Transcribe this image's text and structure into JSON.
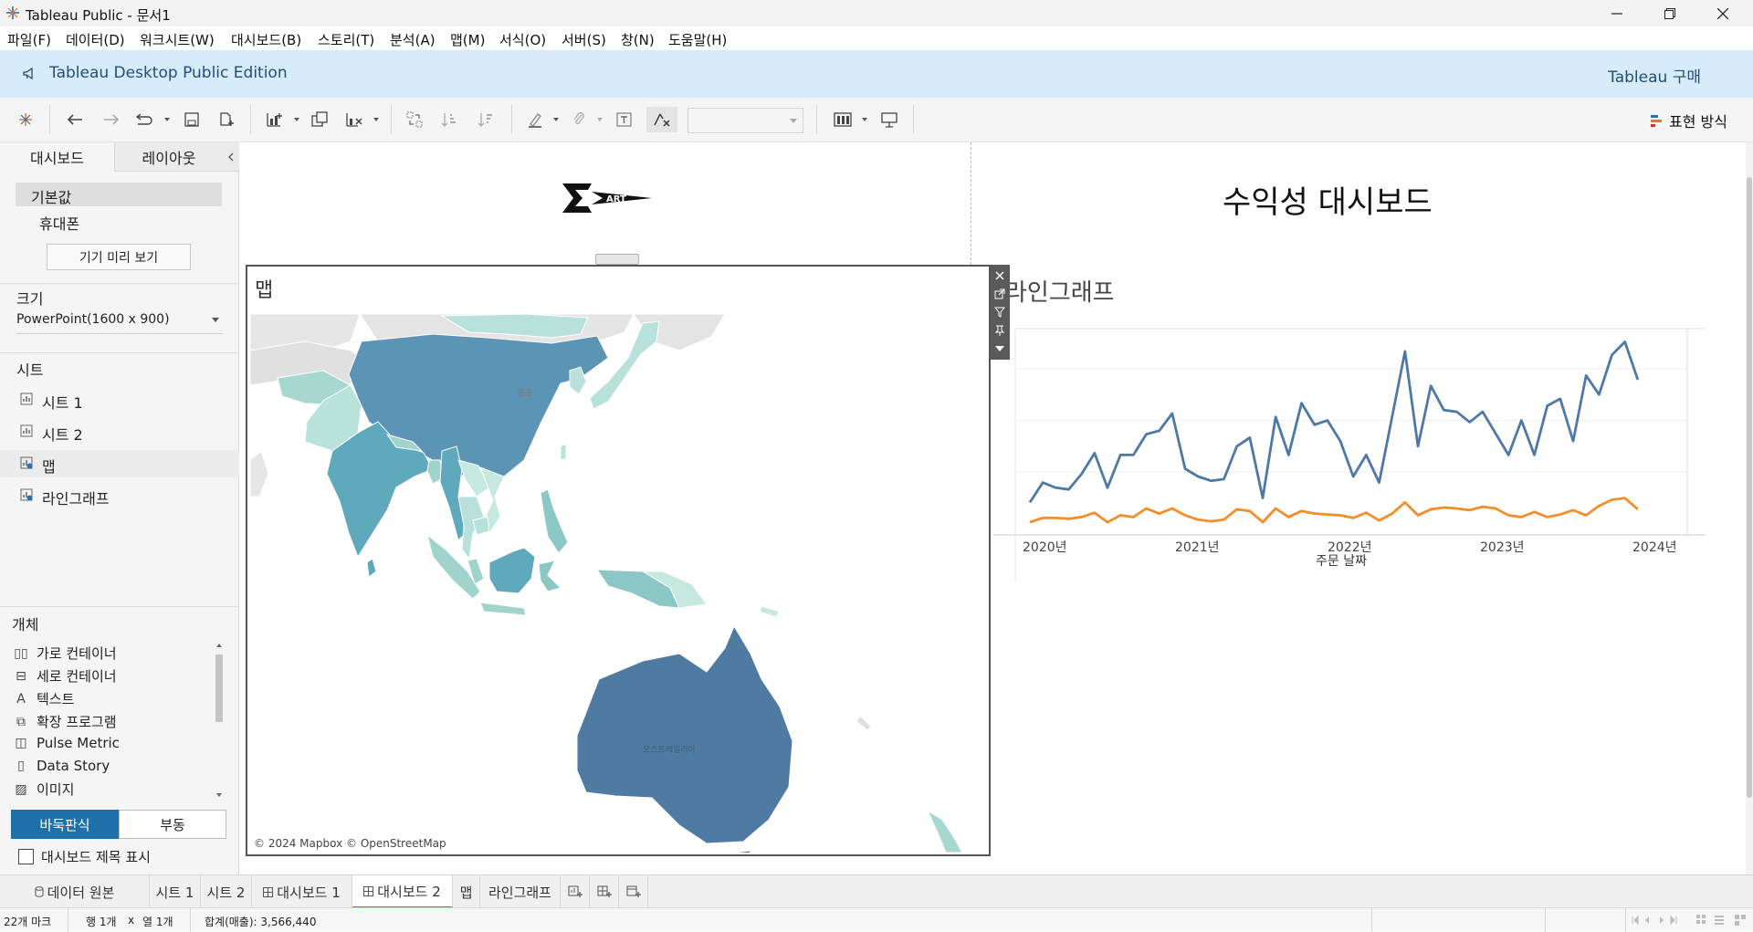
{
  "window": {
    "title": "Tableau Public - 문서1"
  },
  "menu": [
    "파일(F)",
    "데이터(D)",
    "워크시트(W)",
    "대시보드(B)",
    "스토리(T)",
    "분석(A)",
    "맵(M)",
    "서식(O)",
    "서버(S)",
    "창(N)",
    "도움말(H)"
  ],
  "banner": {
    "edition": "Tableau Desktop Public Edition",
    "buy": "Tableau 구매"
  },
  "toolbar": {
    "show_me": "표현 방식"
  },
  "left_panel": {
    "tabs": [
      "대시보드",
      "레이아웃"
    ],
    "devices": [
      "기본값",
      "휴대폰"
    ],
    "preview_button": "기기 미리 보기",
    "size_heading": "크기",
    "size_value": "PowerPoint(1600 x 900)",
    "sheets_heading": "시트",
    "sheets": [
      "시트 1",
      "시트 2",
      "맵",
      "라인그래프"
    ],
    "objects_heading": "개체",
    "objects": [
      "가로 컨테이너",
      "세로 컨테이너",
      "텍스트",
      "확장 프로그램",
      "Pulse Metric",
      "Data Story",
      "이미지"
    ],
    "tiled": "바둑판식",
    "floating": "부동",
    "show_title": "대시보드 제목 표시"
  },
  "dashboard": {
    "title": "수익성 대시보드",
    "logo_text": "ΣART",
    "map": {
      "title": "맵",
      "credit": "© 2024 Mapbox © OpenStreetMap",
      "labels": [
        "중국",
        "오스트레일리아"
      ]
    },
    "line": {
      "title": "라인그래프"
    }
  },
  "chart_data": {
    "type": "line",
    "title": "라인그래프",
    "xlabel": "주문 날짜",
    "ylabel": "",
    "x_ticks": [
      "2020년",
      "2021년",
      "2022년",
      "2023년",
      "2024년"
    ],
    "x_range": [
      "2020-01",
      "2023-12"
    ],
    "grid": true,
    "series": [
      {
        "color": "#4e79a7",
        "values": [
          25,
          48,
          42,
          40,
          58,
          82,
          42,
          80,
          80,
          104,
          108,
          128,
          64,
          55,
          50,
          52,
          90,
          100,
          30,
          124,
          80,
          140,
          115,
          120,
          96,
          55,
          80,
          48,
          124,
          200,
          90,
          160,
          132,
          130,
          118,
          130,
          105,
          80,
          120,
          80,
          137,
          145,
          96,
          172,
          150,
          196,
          211,
          167
        ]
      },
      {
        "color": "#f28e2b",
        "values": [
          2,
          7,
          7,
          6,
          8,
          13,
          2,
          10,
          8,
          18,
          12,
          18,
          10,
          5,
          3,
          5,
          17,
          15,
          2,
          18,
          8,
          15,
          12,
          11,
          10,
          7,
          13,
          4,
          12,
          25,
          10,
          17,
          19,
          18,
          16,
          20,
          18,
          10,
          8,
          14,
          8,
          11,
          16,
          10,
          21,
          28,
          30,
          17
        ]
      }
    ]
  },
  "sheet_tabs": [
    "데이터 원본",
    "시트 1",
    "시트 2",
    "대시보드 1",
    "대시보드 2",
    "맵",
    "라인그래프"
  ],
  "status": {
    "marks": "22개 마크",
    "rows": "행 1개",
    "x": "x",
    "cols": "열 1개",
    "sum": "합계(매출): 3,566,440"
  }
}
